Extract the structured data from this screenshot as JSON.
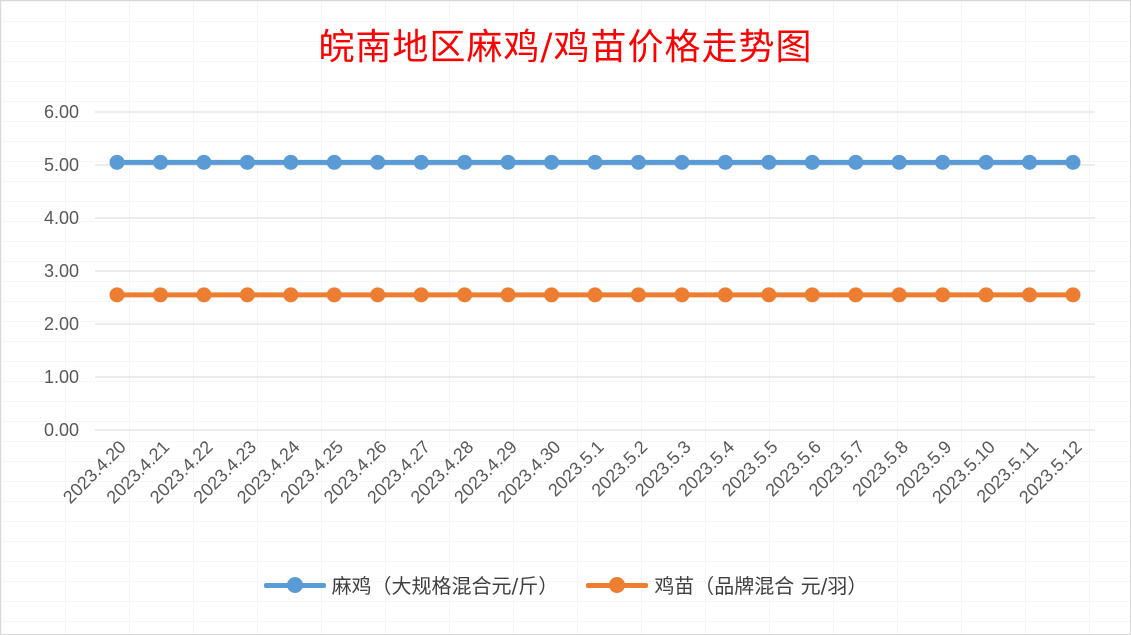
{
  "chart_data": {
    "type": "line",
    "title": "皖南地区麻鸡/鸡苗价格走势图",
    "categories": [
      "2023.4.20",
      "2023.4.21",
      "2023.4.22",
      "2023.4.23",
      "2023.4.24",
      "2023.4.25",
      "2023.4.26",
      "2023.4.27",
      "2023.4.28",
      "2023.4.29",
      "2023.4.30",
      "2023.5.1",
      "2023.5.2",
      "2023.5.3",
      "2023.5.4",
      "2023.5.5",
      "2023.5.6",
      "2023.5.7",
      "2023.5.8",
      "2023.5.9",
      "2023.5.10",
      "2023.5.11",
      "2023.5.12"
    ],
    "series": [
      {
        "name": "麻鸡（大规格混合元/斤）",
        "color": "#5b9bd5",
        "values": [
          5.05,
          5.05,
          5.05,
          5.05,
          5.05,
          5.05,
          5.05,
          5.05,
          5.05,
          5.05,
          5.05,
          5.05,
          5.05,
          5.05,
          5.05,
          5.05,
          5.05,
          5.05,
          5.05,
          5.05,
          5.05,
          5.05,
          5.05
        ]
      },
      {
        "name": "鸡苗（品牌混合 元/羽）",
        "color": "#ed7d31",
        "values": [
          2.55,
          2.55,
          2.55,
          2.55,
          2.55,
          2.55,
          2.55,
          2.55,
          2.55,
          2.55,
          2.55,
          2.55,
          2.55,
          2.55,
          2.55,
          2.55,
          2.55,
          2.55,
          2.55,
          2.55,
          2.55,
          2.55,
          2.55
        ]
      }
    ],
    "yticks": [
      "0.00",
      "1.00",
      "2.00",
      "3.00",
      "4.00",
      "5.00",
      "6.00"
    ],
    "ylim": [
      0,
      6
    ],
    "grid": true,
    "legend_position": "bottom",
    "title_color": "#ff0000"
  }
}
